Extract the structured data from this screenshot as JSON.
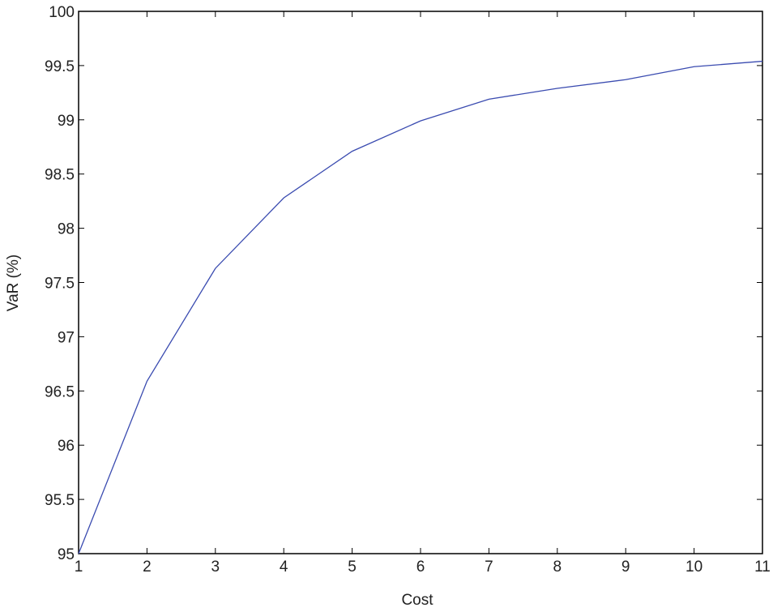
{
  "chart_data": {
    "type": "line",
    "title": "",
    "xlabel": "Cost",
    "ylabel": "VaR (%)",
    "xlim": [
      1,
      11
    ],
    "ylim": [
      95,
      100
    ],
    "xticks": [
      "1",
      "2",
      "3",
      "4",
      "5",
      "6",
      "7",
      "8",
      "9",
      "10",
      "11"
    ],
    "yticks": [
      "95",
      "95.5",
      "96",
      "96.5",
      "97",
      "97.5",
      "98",
      "98.5",
      "99",
      "99.5",
      "100"
    ],
    "grid": false,
    "line_color": "#3a4bb0",
    "series": [
      {
        "x": [
          1,
          2,
          3,
          4,
          5,
          6,
          7,
          8,
          9,
          10,
          11
        ],
        "y": [
          95.0,
          96.59,
          97.63,
          98.28,
          98.71,
          98.99,
          99.19,
          99.29,
          99.37,
          99.49,
          99.54
        ]
      }
    ]
  }
}
